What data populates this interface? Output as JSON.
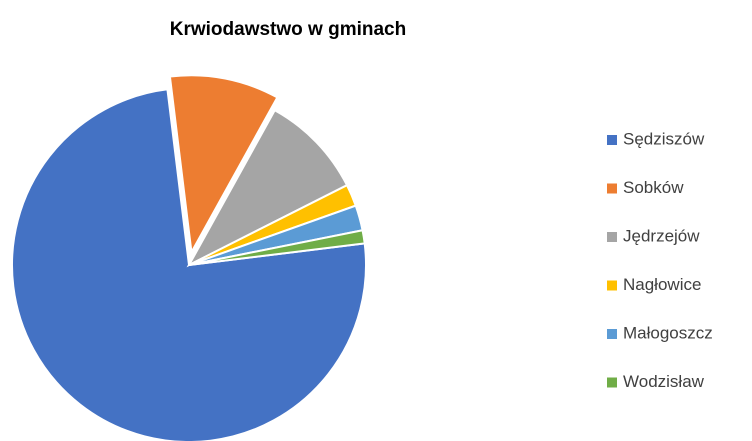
{
  "chart_data": {
    "type": "pie",
    "title": "Krwiodawstwo w gminach",
    "categories": [
      "Sędziszów",
      "Sobków",
      "Jędrzejów",
      "Nagłowice",
      "Małogoszcz",
      "Wodzisław"
    ],
    "values": [
      75,
      10,
      9.5,
      2,
      2.3,
      1.2
    ],
    "colors": [
      "#4472c4",
      "#ed7d31",
      "#a5a5a5",
      "#ffc000",
      "#5b9bd5",
      "#70ad47"
    ],
    "legend": "right"
  }
}
